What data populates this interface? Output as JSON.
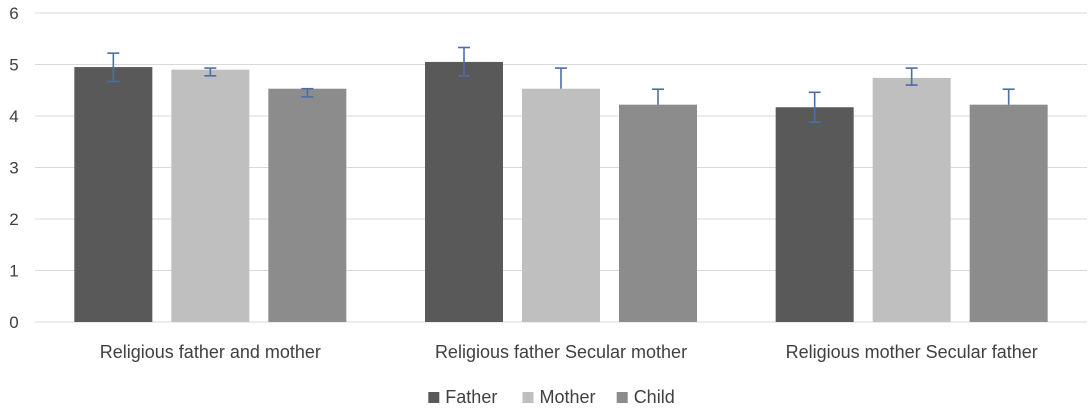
{
  "chart_data": {
    "type": "bar",
    "categories": [
      "Religious father and mother",
      "Religious father Secular mother",
      "Religious mother Secular father"
    ],
    "series": [
      {
        "name": "Father",
        "color": "#595959",
        "values": [
          4.95,
          5.05,
          4.17
        ],
        "err_low": [
          4.67,
          4.78,
          3.88
        ],
        "err_high": [
          5.22,
          5.33,
          4.46
        ]
      },
      {
        "name": "Mother",
        "color": "#BFBFBF",
        "values": [
          4.9,
          4.53,
          4.74
        ],
        "err_low": [
          4.78,
          null,
          4.6
        ],
        "err_high": [
          4.93,
          4.93,
          4.93
        ]
      },
      {
        "name": "Child",
        "color": "#8C8C8C",
        "values": [
          4.53,
          4.22,
          4.22
        ],
        "err_low": [
          4.37,
          null,
          null
        ],
        "err_high": [
          4.53,
          4.52,
          4.52
        ]
      }
    ],
    "ylim": [
      0,
      6
    ],
    "yticks": [
      0,
      1,
      2,
      3,
      4,
      5,
      6
    ],
    "grid": true,
    "legend": "bottom",
    "error_bar_color": "#4A6FA5",
    "gridline_color": "#D9D9D9",
    "axis_line_color": "#D9D9D9"
  }
}
